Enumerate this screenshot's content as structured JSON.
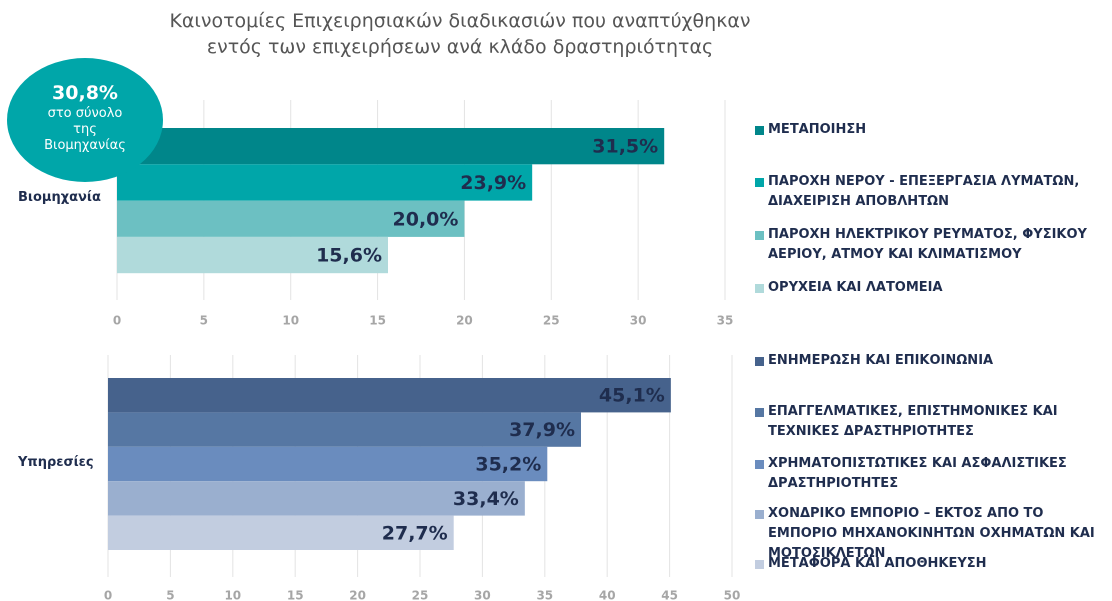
{
  "chart_data": [
    {
      "type": "barh",
      "title": "Καινοτομίες Επιχειρησιακών διαδικασιών που αναπτύχθηκαν εντός των επιχειρήσεων ανά κλάδο δραστηριότητας",
      "annotation": {
        "headline": "30,8%",
        "text": "στο σύνολο της Βιομηχανίας"
      },
      "categories": [
        "Βιομηχανία"
      ],
      "series": [
        {
          "name": "ΜΕΤΑΠΟΙΗΣΗ",
          "color": "#00868a",
          "values": [
            31.5
          ],
          "value_labels": [
            "31,5%"
          ]
        },
        {
          "name": "ΠΑΡΟΧΗ ΝΕΡΟΥ - ΕΠΕΞΕΡΓΑΣΙΑ ΛΥΜΑΤΩΝ, ΔΙΑΧΕΙΡΙΣΗ ΑΠΟΒΛΗΤΩΝ",
          "color": "#00a6a9",
          "values": [
            23.9
          ],
          "value_labels": [
            "23,9%"
          ]
        },
        {
          "name": "ΠΑΡΟΧΗ ΗΛΕΚΤΡΙΚΟΥ ΡΕΥΜΑΤΟΣ, ΦΥΣΙΚΟΥ ΑΕΡΙΟΥ, ΑΤΜΟΥ ΚΑΙ ΚΛΙΜΑΤΙΣΜΟΥ",
          "color": "#6cc0c2",
          "values": [
            20.0
          ],
          "value_labels": [
            "20,0%"
          ]
        },
        {
          "name": "ΟΡΥΧΕΙΑ ΚΑΙ ΛΑΤΟΜΕΙΑ",
          "color": "#b0dadb",
          "values": [
            15.6
          ],
          "value_labels": [
            "15,6%"
          ]
        }
      ],
      "xlim": [
        0,
        35
      ],
      "xticks": [
        0,
        5,
        10,
        15,
        20,
        25,
        30,
        35
      ],
      "grid": true,
      "legend": "right"
    },
    {
      "type": "barh",
      "categories": [
        "Υπηρεσίες"
      ],
      "series": [
        {
          "name": "ΕΝΗΜΕΡΩΣΗ ΚΑΙ ΕΠΙΚΟΙΝΩΝΙΑ",
          "color": "#46628c",
          "values": [
            45.1
          ],
          "value_labels": [
            "45,1%"
          ]
        },
        {
          "name": "ΕΠΑΓΓΕΛΜΑΤΙΚΕΣ, ΕΠΙΣΤΗΜΟΝΙΚΕΣ ΚΑΙ ΤΕΧΝΙΚΕΣ ΔΡΑΣΤΗΡΙΟΤΗΤΕΣ",
          "color": "#5677a3",
          "values": [
            37.9
          ],
          "value_labels": [
            "37,9%"
          ]
        },
        {
          "name": "ΧΡΗΜΑΤΟΠΙΣΤΩΤΙΚΕΣ ΚΑΙ ΑΣΦΑΛΙΣΤΙΚΕΣ ΔΡΑΣΤΗΡΙΟΤΗΤΕΣ",
          "color": "#6a8cbe",
          "values": [
            35.2
          ],
          "value_labels": [
            "35,2%"
          ]
        },
        {
          "name": "ΧΟΝΔΡΙΚΟ ΕΜΠΟΡΙΟ – ΕΚΤΟΣ ΑΠΟ ΤΟ ΕΜΠΟΡΙΟ ΜΗΧΑΝΟΚΙΝΗΤΩΝ ΟΧΗΜΑΤΩΝ ΚΑΙ ΜΟΤΟΣΙΚΛΕΤΩΝ",
          "color": "#9aafcf",
          "values": [
            33.4
          ],
          "value_labels": [
            "33,4%"
          ]
        },
        {
          "name": "ΜΕΤΑΦΟΡΑ ΚΑΙ ΑΠΟΘΗΚΕΥΣΗ",
          "color": "#c2cde0",
          "values": [
            27.7
          ],
          "value_labels": [
            "27,7%"
          ]
        }
      ],
      "xlim": [
        0,
        50
      ],
      "xticks": [
        0,
        5,
        10,
        15,
        20,
        25,
        30,
        35,
        40,
        45,
        50
      ],
      "grid": true,
      "legend": "right"
    }
  ]
}
